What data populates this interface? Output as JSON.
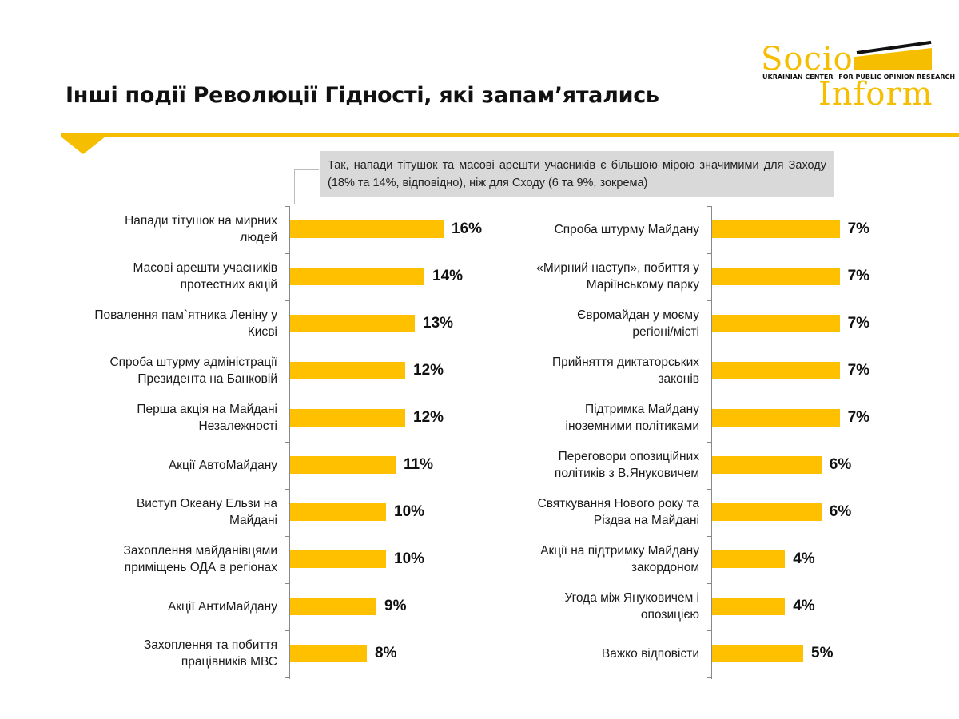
{
  "title": "Інші події Революції Гідності, які запам’ятались",
  "logo": {
    "word1": "Socio",
    "word2": "Inform",
    "band_left": "UKRAINIAN CENTER",
    "band_right": "FOR PUBLIC OPINION RESEARCH"
  },
  "callout": "Так, напади тітушок та масові арешти учасників є більшою мірою значимими для Заходу (18% та 14%, відповідно), ніж для Сходу (6 та 9%, зокрема)",
  "colors": {
    "accent": "#F5BE00",
    "bar": "#FFC000",
    "callout_bg": "#D9D9D9"
  },
  "chart_data": [
    {
      "type": "bar",
      "orientation": "horizontal",
      "categories": [
        "Напади тітушок на мирних людей",
        "Масові арешти учасників протестних акцій",
        "Повалення пам`ятника Леніну у Києві",
        "Спроба штурму адміністрації Президента на Банковій",
        "Перша акція на Майдані Незалежності",
        "Акції АвтоМайдану",
        "Виступ Океану Ельзи на Майдані",
        "Захоплення майданівцями приміщень ОДА в регіонах",
        "Акції АнтиМайдану",
        "Захоплення та побиття працівників МВС"
      ],
      "label_lines": [
        [
          "Напади тітушок на мирних",
          "людей"
        ],
        [
          "Масові арешти учасників",
          "протестних акцій"
        ],
        [
          "Повалення пам`ятника Леніну у",
          "Києві"
        ],
        [
          "Спроба штурму адміністрації",
          "Президента на Банковій"
        ],
        [
          "Перша акція на Майдані",
          "Незалежності"
        ],
        [
          "Акції АвтоМайдану"
        ],
        [
          "Виступ Океану Ельзи на",
          "Майдані"
        ],
        [
          "Захоплення майданівцями",
          "приміщень ОДА в регіонах"
        ],
        [
          "Акції АнтиМайдану"
        ],
        [
          "Захоплення та побиття",
          "працівників МВС"
        ]
      ],
      "values": [
        16,
        14,
        13,
        12,
        12,
        11,
        10,
        10,
        9,
        8
      ],
      "value_labels": [
        "16%",
        "14%",
        "13%",
        "12%",
        "12%",
        "11%",
        "10%",
        "10%",
        "9%",
        "8%"
      ],
      "unit": "%"
    },
    {
      "type": "bar",
      "orientation": "horizontal",
      "categories": [
        "Спроба штурму Майдану",
        "«Мирний наступ», побиття у Маріїнському парку",
        "Євромайдан у моєму регіоні/місті",
        "Прийняття диктаторських законів",
        "Підтримка Майдану іноземними політиками",
        "Переговори опозиційних політиків з В.Януковичем",
        "Святкування Нового року та Різдва на Майдані",
        "Акції на підтримку Майдану закордоном",
        "Угода між Януковичем і опозицією",
        "Важко відповісти"
      ],
      "label_lines": [
        [
          "Спроба штурму Майдану"
        ],
        [
          "«Мирний наступ», побиття у",
          "Маріїнському парку"
        ],
        [
          "Євромайдан у моєму",
          "регіоні/місті"
        ],
        [
          "Прийняття диктаторських",
          "законів"
        ],
        [
          "Підтримка Майдану",
          "іноземними політиками"
        ],
        [
          "Переговори опозиційних",
          "політиків з В.Януковичем"
        ],
        [
          "Святкування Нового року та",
          "Різдва на Майдані"
        ],
        [
          "Акції на підтримку Майдану",
          "закордоном"
        ],
        [
          "Угода між Януковичем і",
          "опозицією"
        ],
        [
          "Важко відповісти"
        ]
      ],
      "values": [
        7,
        7,
        7,
        7,
        7,
        6,
        6,
        4,
        4,
        5
      ],
      "value_labels": [
        "7%",
        "7%",
        "7%",
        "7%",
        "7%",
        "6%",
        "6%",
        "4%",
        "4%",
        "5%"
      ],
      "unit": "%"
    }
  ]
}
